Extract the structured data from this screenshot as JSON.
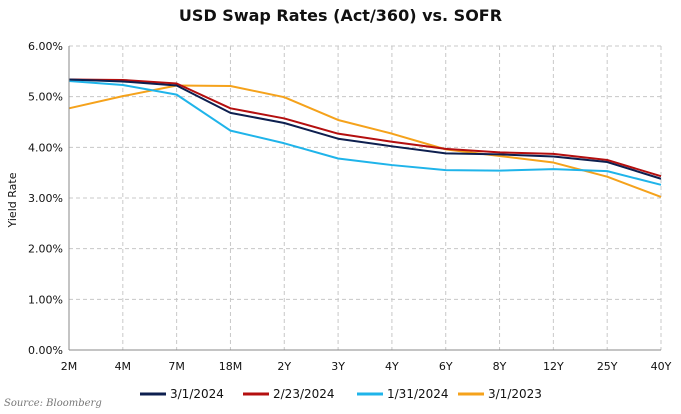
{
  "chart_data": {
    "type": "line",
    "title": "USD Swap Rates (Act/360) vs. SOFR",
    "ylabel": "Yield Rate",
    "xlabel": "",
    "categories": [
      "2M",
      "4M",
      "7M",
      "18M",
      "2Y",
      "3Y",
      "4Y",
      "6Y",
      "8Y",
      "12Y",
      "25Y",
      "40Y"
    ],
    "ylim": [
      0,
      6
    ],
    "yticks": [
      "0.00%",
      "1.00%",
      "2.00%",
      "3.00%",
      "4.00%",
      "5.00%",
      "6.00%"
    ],
    "yticks_values": [
      0,
      1,
      2,
      3,
      4,
      5,
      6
    ],
    "grid": true,
    "legend_position": "bottom",
    "series": [
      {
        "name": "3/1/2024",
        "color": "#0d1f4f",
        "values": [
          5.34,
          5.3,
          5.22,
          4.68,
          4.48,
          4.17,
          4.02,
          3.88,
          3.86,
          3.82,
          3.71,
          3.38
        ]
      },
      {
        "name": "2/23/2024",
        "color": "#b40f0f",
        "values": [
          5.34,
          5.33,
          5.26,
          4.77,
          4.57,
          4.27,
          4.11,
          3.97,
          3.9,
          3.87,
          3.75,
          3.43
        ]
      },
      {
        "name": "1/31/2024",
        "color": "#1fb4ea",
        "values": [
          5.31,
          5.23,
          5.04,
          4.33,
          4.08,
          3.78,
          3.65,
          3.55,
          3.54,
          3.57,
          3.53,
          3.26
        ]
      },
      {
        "name": "3/1/2023",
        "color": "#f5a21b",
        "values": [
          4.77,
          5.01,
          5.22,
          5.21,
          4.99,
          4.54,
          4.27,
          3.96,
          3.83,
          3.7,
          3.42,
          3.02
        ]
      }
    ]
  },
  "source": "Source: Bloomberg"
}
